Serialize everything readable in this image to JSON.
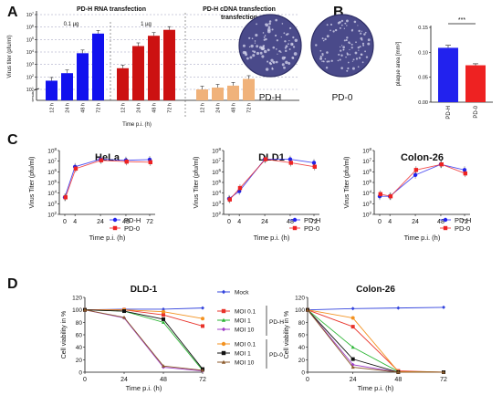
{
  "panel_labels": [
    "A",
    "B",
    "C",
    "D"
  ],
  "colors": {
    "pdh": "#2222ee",
    "pd0": "#ee2222",
    "rna_low": "#1111ee",
    "rna_high": "#cc1111",
    "cdna": "#f0b27a",
    "mock": "#3344dd",
    "d_pdh_01": "#e8332a",
    "d_pdh_1": "#2bb534",
    "d_pdh_10": "#a040c8",
    "d_pd0_01": "#f39220",
    "d_pd0_1": "#111111",
    "d_pd0_10": "#8b5a2b",
    "plaque_dish": "#4a4a8a",
    "grid": "#9999bb"
  },
  "chart_data": [
    {
      "id": "A",
      "type": "bar",
      "group_titles": [
        "PD-H RNA transfection",
        "PD-H cDNA transfection"
      ],
      "subgroup_titles": [
        "0.1 µg",
        "1 µg"
      ],
      "categories": [
        "12 h",
        "24 h",
        "48 h",
        "72 h"
      ],
      "series": [
        {
          "name": "0.1 µg",
          "values": [
            50,
            200,
            8000,
            300000
          ]
        },
        {
          "name": "1 µg",
          "values": [
            500,
            30000,
            200000,
            600000
          ]
        },
        {
          "name": "",
          "values": [
            10,
            14,
            20,
            70
          ]
        }
      ],
      "ylabel": "Virus titer (pfu/ml)",
      "xlabel": "Time p.i. (h)",
      "yscale": "log-broken",
      "yticks_log": [
        "10^1",
        "10^2",
        "10^3",
        "10^4",
        "10^5",
        "10^6",
        "10^7"
      ],
      "ylin_ticks": [
        "0",
        "1",
        "2",
        "3",
        "4",
        "5"
      ],
      "ylim": [
        1,
        10000000
      ]
    },
    {
      "id": "B",
      "type": "bar",
      "categories": [
        "PD-H",
        "PD-0"
      ],
      "values": [
        0.109,
        0.074
      ],
      "errors": [
        0.005,
        0.003
      ],
      "ylabel": "plaque area [mm²]",
      "ylim": [
        0,
        0.15
      ],
      "yticks": [
        "0.00",
        "0.05",
        "0.10",
        "0.15"
      ],
      "significance": "***",
      "image_labels": [
        "PD-H",
        "PD-0"
      ]
    },
    {
      "id": "C1",
      "type": "line",
      "title": "HeLa",
      "x": [
        0,
        4,
        24,
        48,
        72
      ],
      "xticks": [
        "0",
        "4",
        "24",
        "48",
        "72"
      ],
      "series": [
        {
          "name": "PD-H",
          "values": [
            4000,
            3000000,
            15000000,
            12000000,
            14000000
          ]
        },
        {
          "name": "PD-0",
          "values": [
            4000,
            2000000,
            12000000,
            9000000,
            8000000
          ]
        }
      ],
      "xlabel": "Time p.i. (h)",
      "ylabel": "Virus Titer (pfu/ml)",
      "ylim": [
        100,
        100000000
      ],
      "yticks": [
        "10^2",
        "10^3",
        "10^4",
        "10^5",
        "10^6",
        "10^7",
        "10^8"
      ]
    },
    {
      "id": "C2",
      "type": "line",
      "title": "DLD1",
      "x": [
        0,
        4,
        24,
        48,
        72
      ],
      "xticks": [
        "0",
        "4",
        "24",
        "48",
        "72"
      ],
      "series": [
        {
          "name": "PD-H",
          "values": [
            3000,
            15000,
            15000000,
            15000000,
            7000000
          ]
        },
        {
          "name": "PD-0",
          "values": [
            2500,
            30000,
            15000000,
            7000000,
            3000000
          ]
        }
      ],
      "xlabel": "Time p.i. (h)",
      "ylabel": "Virus Titer (pfu/ml)",
      "ylim": [
        100,
        100000000
      ],
      "yticks": [
        "10^2",
        "10^3",
        "10^4",
        "10^5",
        "10^6",
        "10^7",
        "10^8"
      ]
    },
    {
      "id": "C3",
      "type": "line",
      "title": "Colon-26",
      "x": [
        0,
        4,
        24,
        48,
        72
      ],
      "xticks": [
        "0",
        "4",
        "24",
        "48",
        "72"
      ],
      "series": [
        {
          "name": "PD-H",
          "values": [
            5000,
            5000,
            500000,
            5000000,
            1500000
          ]
        },
        {
          "name": "PD-0",
          "values": [
            8000,
            5000,
            1500000,
            5000000,
            700000
          ]
        }
      ],
      "xlabel": "Time p.i. (h)",
      "ylabel": "Virus Titer (pfu/ml)",
      "ylim": [
        100,
        100000000
      ],
      "yticks": [
        "10^2",
        "10^3",
        "10^4",
        "10^5",
        "10^6",
        "10^7",
        "10^8"
      ]
    },
    {
      "id": "D1",
      "type": "line",
      "title": "DLD-1",
      "x": [
        0,
        24,
        48,
        72
      ],
      "xticks": [
        "0",
        "24",
        "48",
        "72"
      ],
      "series": [
        {
          "name": "Mock",
          "values": [
            100,
            101,
            101,
            103
          ]
        },
        {
          "name": "MOI 0.1",
          "values": [
            100,
            100,
            92,
            74
          ]
        },
        {
          "name": "MOI 1",
          "values": [
            100,
            98,
            80,
            3
          ]
        },
        {
          "name": "MOI 10",
          "values": [
            100,
            87,
            8,
            2
          ]
        },
        {
          "name": "MOI 0.1",
          "values": [
            100,
            100,
            97,
            86
          ]
        },
        {
          "name": "MOI 1",
          "values": [
            100,
            98,
            85,
            5
          ]
        },
        {
          "name": "MOI 10",
          "values": [
            100,
            88,
            10,
            3
          ]
        }
      ],
      "xlabel": "Time p.i. (h)",
      "ylabel": "Cell viability in %",
      "ylim": [
        0,
        120
      ],
      "yticks": [
        "0",
        "20",
        "40",
        "60",
        "80",
        "100",
        "120"
      ]
    },
    {
      "id": "D2",
      "type": "line",
      "title": "Colon-26",
      "x": [
        0,
        24,
        48,
        72
      ],
      "xticks": [
        "0",
        "24",
        "48",
        "72"
      ],
      "series": [
        {
          "name": "Mock",
          "values": [
            100,
            102,
            103,
            104
          ]
        },
        {
          "name": "MOI 0.1",
          "values": [
            100,
            73,
            2,
            0
          ]
        },
        {
          "name": "MOI 1",
          "values": [
            100,
            40,
            1,
            0
          ]
        },
        {
          "name": "MOI 10",
          "values": [
            100,
            12,
            0,
            0
          ]
        },
        {
          "name": "MOI 0.1",
          "values": [
            100,
            87,
            1,
            0
          ]
        },
        {
          "name": "MOI 1",
          "values": [
            100,
            21,
            0,
            0
          ]
        },
        {
          "name": "MOI 10",
          "values": [
            100,
            8,
            0,
            0
          ]
        }
      ],
      "xlabel": "Time p.i. (h)",
      "ylabel": "Cell viability in %",
      "ylim": [
        0,
        120
      ],
      "yticks": [
        "0",
        "20",
        "40",
        "60",
        "80",
        "100",
        "120"
      ]
    }
  ],
  "legend_c": [
    "PD-H",
    "PD-0"
  ],
  "legend_d": {
    "mock": "Mock",
    "pdh_label": "PD-H",
    "pd0_label": "PD-0",
    "pdh_items": [
      "MOI 0.1",
      "MOI 1",
      "MOI 10"
    ],
    "pd0_items": [
      "MOI 0.1",
      "MOI 1",
      "MOI 10"
    ]
  }
}
